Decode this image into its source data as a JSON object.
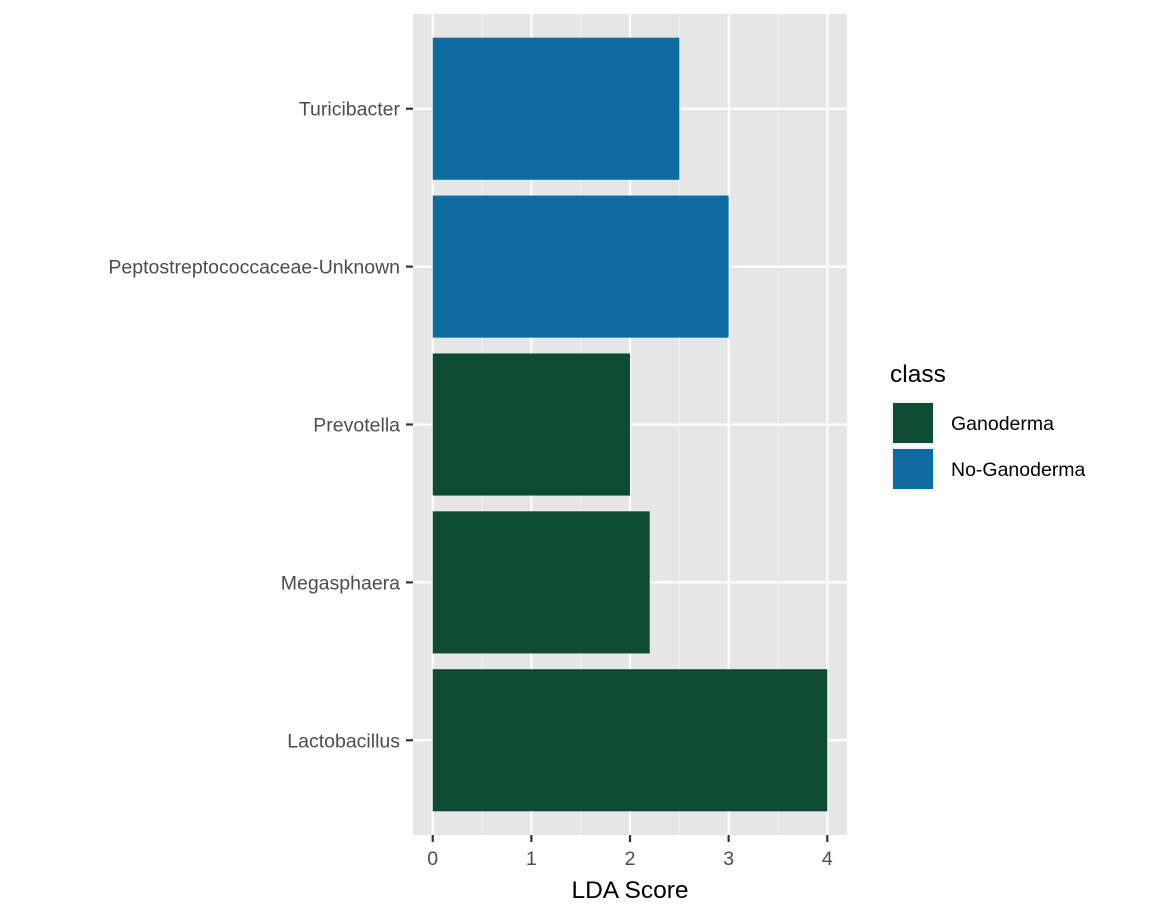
{
  "chart_data": {
    "type": "bar",
    "orientation": "horizontal",
    "categories": [
      "Turicibacter",
      "Peptostreptococcaceae-Unknown",
      "Prevotella",
      "Megasphaera",
      "Lactobacillus"
    ],
    "values": [
      2.5,
      3.0,
      2.0,
      2.2,
      4.0
    ],
    "groups": [
      "No-Ganoderma",
      "No-Ganoderma",
      "Ganoderma",
      "Ganoderma",
      "Ganoderma"
    ],
    "xlabel": "LDA Score",
    "ylabel": "",
    "xlim": [
      -0.2,
      4.2
    ],
    "xticks": [
      "0",
      "1",
      "2",
      "3",
      "4"
    ],
    "grid": true,
    "legend": {
      "title": "class",
      "position": "right",
      "entries": [
        {
          "name": "Ganoderma",
          "color": "#0e4b33"
        },
        {
          "name": "No-Ganoderma",
          "color": "#0f6ca3"
        }
      ]
    }
  }
}
